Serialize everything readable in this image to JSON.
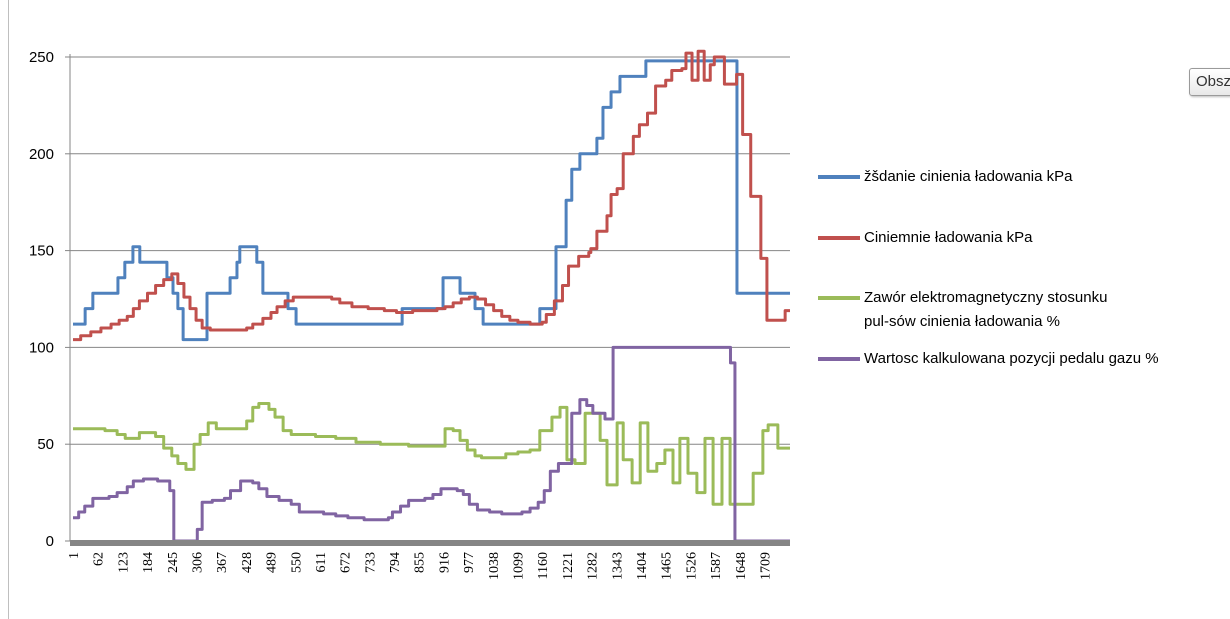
{
  "chart_area_button": "Obsz",
  "chart_data": {
    "type": "line",
    "title": "",
    "xlabel": "",
    "ylabel": "",
    "ylim": [
      0,
      250
    ],
    "xlim": [
      1,
      1772
    ],
    "yticks": [
      "0",
      "50",
      "100",
      "150",
      "200",
      "250"
    ],
    "xticks": [
      "1",
      "62",
      "123",
      "184",
      "245",
      "306",
      "367",
      "428",
      "489",
      "550",
      "611",
      "672",
      "733",
      "794",
      "855",
      "916",
      "977",
      "1038",
      "1099",
      "1160",
      "1221",
      "1282",
      "1343",
      "1404",
      "1465",
      "1526",
      "1587",
      "1648",
      "1709"
    ],
    "grid": "horizontal",
    "legend_position": "right",
    "step": true,
    "series": [
      {
        "name": "žšdanie cinienia ładowania kPa",
        "color": "#4f81bd",
        "points": [
          [
            1,
            112
          ],
          [
            31,
            120
          ],
          [
            50,
            128
          ],
          [
            112,
            136
          ],
          [
            129,
            144
          ],
          [
            149,
            152
          ],
          [
            166,
            144
          ],
          [
            233,
            136
          ],
          [
            248,
            128
          ],
          [
            260,
            120
          ],
          [
            273,
            104
          ],
          [
            332,
            128
          ],
          [
            389,
            136
          ],
          [
            406,
            144
          ],
          [
            413,
            152
          ],
          [
            455,
            144
          ],
          [
            470,
            128
          ],
          [
            532,
            120
          ],
          [
            552,
            112
          ],
          [
            814,
            120
          ],
          [
            915,
            136
          ],
          [
            957,
            128
          ],
          [
            994,
            120
          ],
          [
            1014,
            112
          ],
          [
            1154,
            120
          ],
          [
            1194,
            152
          ],
          [
            1219,
            176
          ],
          [
            1233,
            192
          ],
          [
            1253,
            200
          ],
          [
            1295,
            208
          ],
          [
            1310,
            224
          ],
          [
            1330,
            232
          ],
          [
            1352,
            240
          ],
          [
            1416,
            248
          ],
          [
            1641,
            128
          ],
          [
            1772,
            128
          ]
        ]
      },
      {
        "name": "Ciniemnie ładowania kPa",
        "color": "#c0504d",
        "points": [
          [
            1,
            104
          ],
          [
            20,
            106
          ],
          [
            45,
            108
          ],
          [
            70,
            110
          ],
          [
            95,
            112
          ],
          [
            115,
            114
          ],
          [
            135,
            116
          ],
          [
            150,
            120
          ],
          [
            165,
            124
          ],
          [
            185,
            128
          ],
          [
            205,
            132
          ],
          [
            225,
            135
          ],
          [
            245,
            138
          ],
          [
            260,
            133
          ],
          [
            275,
            126
          ],
          [
            290,
            120
          ],
          [
            305,
            114
          ],
          [
            320,
            110
          ],
          [
            340,
            109
          ],
          [
            400,
            109
          ],
          [
            430,
            110
          ],
          [
            445,
            112
          ],
          [
            470,
            115
          ],
          [
            490,
            118
          ],
          [
            505,
            121
          ],
          [
            525,
            124
          ],
          [
            545,
            126
          ],
          [
            600,
            126
          ],
          [
            640,
            125
          ],
          [
            660,
            123
          ],
          [
            690,
            121
          ],
          [
            730,
            120
          ],
          [
            770,
            119
          ],
          [
            800,
            118
          ],
          [
            840,
            119
          ],
          [
            900,
            120
          ],
          [
            920,
            121
          ],
          [
            940,
            123
          ],
          [
            960,
            125
          ],
          [
            980,
            126
          ],
          [
            1000,
            125
          ],
          [
            1020,
            122
          ],
          [
            1040,
            119
          ],
          [
            1060,
            116
          ],
          [
            1080,
            114
          ],
          [
            1100,
            113
          ],
          [
            1130,
            112
          ],
          [
            1160,
            113
          ],
          [
            1170,
            117
          ],
          [
            1190,
            124
          ],
          [
            1210,
            132
          ],
          [
            1225,
            142
          ],
          [
            1250,
            147
          ],
          [
            1275,
            149
          ],
          [
            1280,
            151
          ],
          [
            1295,
            160
          ],
          [
            1320,
            168
          ],
          [
            1330,
            179
          ],
          [
            1345,
            182
          ],
          [
            1360,
            200
          ],
          [
            1385,
            209
          ],
          [
            1400,
            215
          ],
          [
            1420,
            221
          ],
          [
            1440,
            235
          ],
          [
            1465,
            238
          ],
          [
            1480,
            243
          ],
          [
            1505,
            244
          ],
          [
            1515,
            252
          ],
          [
            1530,
            238
          ],
          [
            1545,
            253
          ],
          [
            1560,
            238
          ],
          [
            1575,
            246
          ],
          [
            1585,
            250
          ],
          [
            1610,
            236
          ],
          [
            1640,
            241
          ],
          [
            1655,
            210
          ],
          [
            1675,
            178
          ],
          [
            1700,
            146
          ],
          [
            1715,
            114
          ],
          [
            1760,
            119
          ],
          [
            1772,
            119
          ]
        ]
      },
      {
        "name": "Zawór elektromagnetyczny stosunku pul-sów cinienia ładowania %",
        "color": "#9bbb59",
        "points": [
          [
            1,
            58
          ],
          [
            80,
            57
          ],
          [
            110,
            55
          ],
          [
            130,
            53
          ],
          [
            165,
            56
          ],
          [
            205,
            54
          ],
          [
            225,
            48
          ],
          [
            245,
            44
          ],
          [
            260,
            40
          ],
          [
            280,
            37
          ],
          [
            300,
            50
          ],
          [
            315,
            55
          ],
          [
            335,
            61
          ],
          [
            355,
            58
          ],
          [
            400,
            58
          ],
          [
            430,
            62
          ],
          [
            445,
            69
          ],
          [
            460,
            71
          ],
          [
            485,
            68
          ],
          [
            500,
            64
          ],
          [
            520,
            57
          ],
          [
            540,
            55
          ],
          [
            600,
            54
          ],
          [
            650,
            53
          ],
          [
            700,
            51
          ],
          [
            760,
            50
          ],
          [
            830,
            49
          ],
          [
            880,
            49
          ],
          [
            920,
            58
          ],
          [
            940,
            57
          ],
          [
            957,
            52
          ],
          [
            975,
            47
          ],
          [
            994,
            44
          ],
          [
            1010,
            43
          ],
          [
            1070,
            45
          ],
          [
            1100,
            46
          ],
          [
            1130,
            47
          ],
          [
            1154,
            57
          ],
          [
            1184,
            64
          ],
          [
            1204,
            69
          ],
          [
            1221,
            42
          ],
          [
            1241,
            40
          ],
          [
            1266,
            66
          ],
          [
            1303,
            52
          ],
          [
            1320,
            29
          ],
          [
            1345,
            61
          ],
          [
            1360,
            42
          ],
          [
            1382,
            30
          ],
          [
            1402,
            61
          ],
          [
            1421,
            36
          ],
          [
            1443,
            40
          ],
          [
            1463,
            47
          ],
          [
            1483,
            30
          ],
          [
            1500,
            53
          ],
          [
            1520,
            35
          ],
          [
            1542,
            25
          ],
          [
            1562,
            53
          ],
          [
            1582,
            19
          ],
          [
            1604,
            53
          ],
          [
            1624,
            19
          ],
          [
            1681,
            35
          ],
          [
            1705,
            57
          ],
          [
            1718,
            60
          ],
          [
            1742,
            48
          ],
          [
            1772,
            48
          ]
        ]
      },
      {
        "name": "Wartosc kalkulowana pozycji pedalu gazu %",
        "color": "#8064a2",
        "points": [
          [
            1,
            12
          ],
          [
            15,
            15
          ],
          [
            30,
            18
          ],
          [
            50,
            22
          ],
          [
            90,
            23
          ],
          [
            110,
            25
          ],
          [
            135,
            28
          ],
          [
            150,
            31
          ],
          [
            175,
            32
          ],
          [
            210,
            31
          ],
          [
            240,
            26
          ],
          [
            250,
            0
          ],
          [
            308,
            6
          ],
          [
            320,
            20
          ],
          [
            345,
            21
          ],
          [
            375,
            22
          ],
          [
            390,
            26
          ],
          [
            415,
            31
          ],
          [
            445,
            30
          ],
          [
            460,
            27
          ],
          [
            480,
            23
          ],
          [
            510,
            21
          ],
          [
            540,
            19
          ],
          [
            560,
            15
          ],
          [
            620,
            14
          ],
          [
            650,
            13
          ],
          [
            680,
            12
          ],
          [
            720,
            11
          ],
          [
            780,
            12
          ],
          [
            790,
            15
          ],
          [
            810,
            18
          ],
          [
            830,
            21
          ],
          [
            870,
            22
          ],
          [
            890,
            24
          ],
          [
            910,
            27
          ],
          [
            950,
            26
          ],
          [
            965,
            24
          ],
          [
            980,
            19
          ],
          [
            1000,
            16
          ],
          [
            1030,
            15
          ],
          [
            1060,
            14
          ],
          [
            1110,
            15
          ],
          [
            1130,
            17
          ],
          [
            1150,
            20
          ],
          [
            1165,
            26
          ],
          [
            1180,
            36
          ],
          [
            1200,
            40
          ],
          [
            1233,
            66
          ],
          [
            1253,
            73
          ],
          [
            1270,
            70
          ],
          [
            1285,
            66
          ],
          [
            1315,
            63
          ],
          [
            1335,
            100
          ],
          [
            1616,
            100
          ],
          [
            1625,
            92
          ],
          [
            1636,
            0
          ],
          [
            1772,
            0
          ]
        ]
      }
    ]
  }
}
